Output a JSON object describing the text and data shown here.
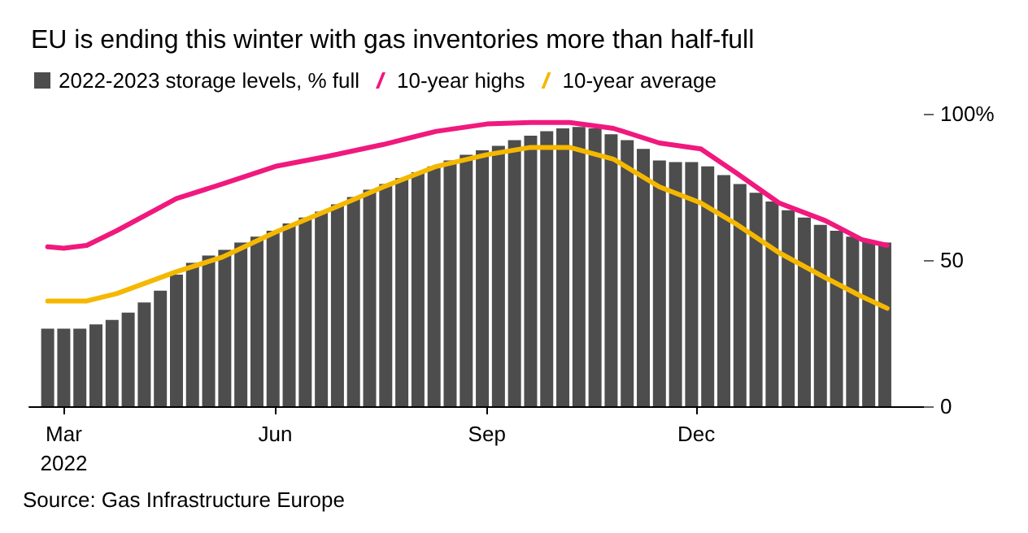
{
  "chart_data": {
    "type": "bar",
    "title": "EU is ending this winter with gas inventories more than half-full",
    "annotations": [
      "Source: Gas Infrastructure Europe"
    ],
    "x": [
      "2022-02-22",
      "2022-03-01",
      "2022-03-08",
      "2022-03-15",
      "2022-03-22",
      "2022-03-29",
      "2022-04-05",
      "2022-04-12",
      "2022-04-19",
      "2022-04-26",
      "2022-05-03",
      "2022-05-10",
      "2022-05-17",
      "2022-05-24",
      "2022-05-31",
      "2022-06-07",
      "2022-06-14",
      "2022-06-21",
      "2022-06-28",
      "2022-07-05",
      "2022-07-12",
      "2022-07-19",
      "2022-07-26",
      "2022-08-02",
      "2022-08-09",
      "2022-08-16",
      "2022-08-23",
      "2022-08-30",
      "2022-09-06",
      "2022-09-13",
      "2022-09-20",
      "2022-09-27",
      "2022-10-04",
      "2022-10-11",
      "2022-10-18",
      "2022-10-25",
      "2022-11-01",
      "2022-11-08",
      "2022-11-15",
      "2022-11-22",
      "2022-11-29",
      "2022-12-06",
      "2022-12-13",
      "2022-12-20",
      "2022-12-27",
      "2023-01-03",
      "2023-01-10",
      "2023-01-17",
      "2023-01-24",
      "2023-01-31",
      "2023-02-07",
      "2023-02-14",
      "2023-02-21"
    ],
    "series": [
      {
        "name": "2022-2023 storage levels, % full",
        "color": "#4d4d4d",
        "values": [
          26.5,
          26.5,
          26.5,
          28,
          29.5,
          32,
          35.5,
          39.5,
          45,
          49,
          51.5,
          53.5,
          56,
          58,
          60,
          62.5,
          64.5,
          66.5,
          69,
          71.5,
          74,
          76,
          78,
          80,
          82,
          84,
          86,
          87.5,
          89,
          91,
          92.5,
          94,
          95,
          95.5,
          95,
          93,
          91,
          88,
          84,
          83.5,
          83.5,
          82,
          79,
          76,
          73,
          70,
          67,
          64.5,
          62,
          60,
          58,
          56.5,
          56
        ]
      },
      {
        "name": "10-year highs",
        "type": "line",
        "color": "#f0197d",
        "x": [
          "2022-02-22",
          "2022-03-01",
          "2022-03-11",
          "2022-03-24",
          "2022-04-19",
          "2022-05-09",
          "2022-06-01",
          "2022-06-24",
          "2022-07-18",
          "2022-08-10",
          "2022-09-01",
          "2022-09-20",
          "2022-10-07",
          "2022-10-26",
          "2022-11-15",
          "2022-12-03",
          "2022-12-18",
          "2023-01-06",
          "2023-01-26",
          "2023-02-11",
          "2023-02-22"
        ],
        "values": [
          54.5,
          54,
          55,
          60,
          71,
          76,
          82,
          85.5,
          89.5,
          94,
          96.5,
          97,
          97,
          95,
          90,
          88,
          80,
          69.5,
          63.5,
          57,
          55
        ]
      },
      {
        "name": "10-year average",
        "type": "line",
        "color": "#f5b800",
        "x": [
          "2022-02-22",
          "2022-03-01",
          "2022-03-11",
          "2022-03-24",
          "2022-04-19",
          "2022-05-09",
          "2022-06-01",
          "2022-06-24",
          "2022-07-18",
          "2022-08-10",
          "2022-09-01",
          "2022-09-20",
          "2022-10-07",
          "2022-10-26",
          "2022-11-15",
          "2022-12-03",
          "2022-12-18",
          "2023-01-06",
          "2023-01-26",
          "2023-02-11",
          "2023-02-22"
        ],
        "values": [
          36,
          36,
          36,
          38.5,
          46,
          51,
          59.5,
          67,
          75,
          82,
          86,
          88.5,
          88.5,
          84.5,
          75,
          69.5,
          62.5,
          52.5,
          44,
          37.5,
          33.5
        ]
      }
    ],
    "xlim": [
      "2022-02-14",
      "2023-03-10"
    ],
    "xticks": [
      {
        "value": "2022-03-01",
        "label": "Mar\n2022"
      },
      {
        "value": "2022-06-01",
        "label": "Jun"
      },
      {
        "value": "2022-09-01",
        "label": "Sep"
      },
      {
        "value": "2022-12-01",
        "label": "Dec"
      }
    ],
    "ylim": [
      0,
      100
    ],
    "yticks": [
      0,
      50,
      {
        "value": 100,
        "label": "100%"
      }
    ],
    "grid": false,
    "legend": "top left",
    "line_style": "solid",
    "marker": "none"
  }
}
